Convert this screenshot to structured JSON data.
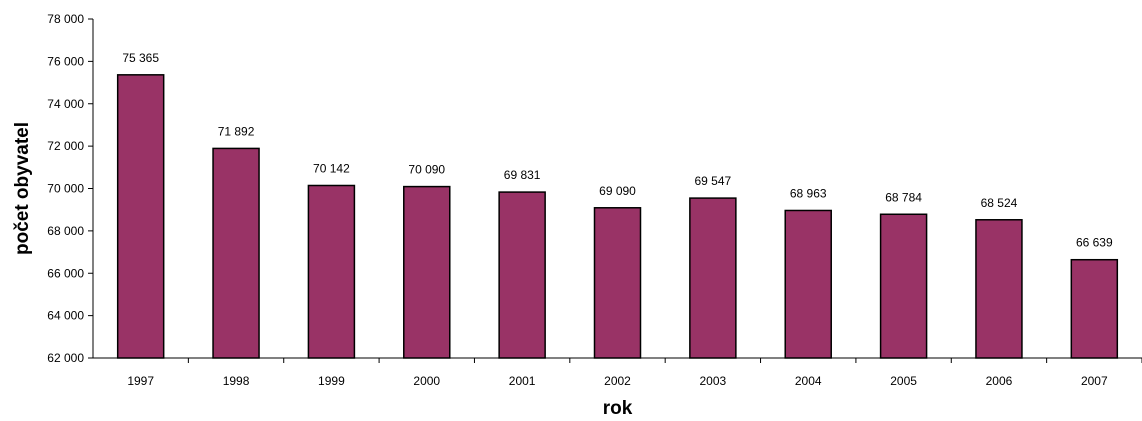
{
  "chart_data": {
    "type": "bar",
    "title": "",
    "xlabel": "rok",
    "ylabel": "počet obyvatel",
    "categories": [
      "1997",
      "1998",
      "1999",
      "2000",
      "2001",
      "2002",
      "2003",
      "2004",
      "2005",
      "2006",
      "2007"
    ],
    "values": [
      75365,
      71892,
      70142,
      70090,
      69831,
      69090,
      69547,
      68963,
      68784,
      68524,
      66639
    ],
    "value_labels": [
      "75 365",
      "71 892",
      "70 142",
      "70 090",
      "69 831",
      "69 090",
      "69 547",
      "68 963",
      "68 784",
      "68 524",
      "66 639"
    ],
    "ylim": [
      62000,
      78000
    ],
    "yticks": [
      62000,
      64000,
      66000,
      68000,
      70000,
      72000,
      74000,
      76000,
      78000
    ],
    "ytick_labels": [
      "62 000",
      "64 000",
      "66 000",
      "68 000",
      "70 000",
      "72 000",
      "74 000",
      "76 000",
      "78 000"
    ],
    "grid": false,
    "legend": "none",
    "colors": {
      "bar_fill": "#993366",
      "bar_stroke": "#000000",
      "axis": "#000000"
    }
  }
}
